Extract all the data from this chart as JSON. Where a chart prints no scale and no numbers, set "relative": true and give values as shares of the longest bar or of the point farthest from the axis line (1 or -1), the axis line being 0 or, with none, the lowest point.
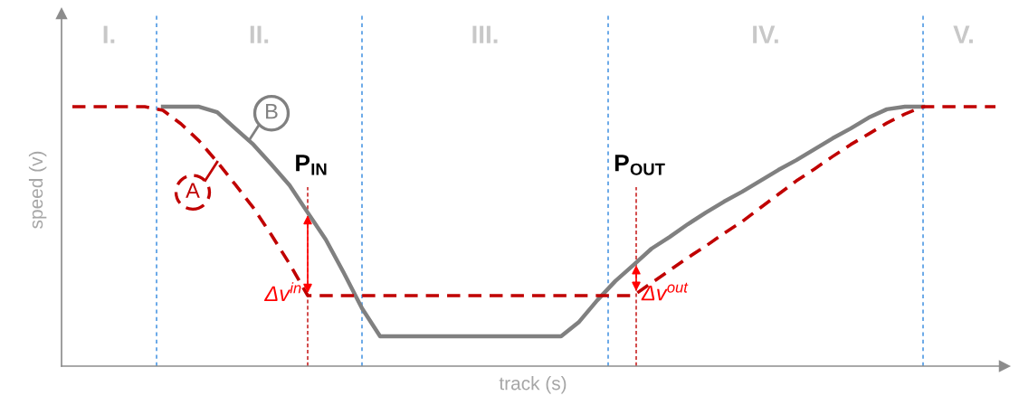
{
  "chart_data": {
    "type": "line",
    "relative": true,
    "xlabel": "track (s)",
    "ylabel": "speed (v)",
    "categories": [
      null,
      null,
      null,
      null,
      null,
      null,
      null,
      null,
      null,
      null,
      null,
      null,
      null,
      null,
      null,
      null,
      null,
      null,
      null,
      null,
      null,
      null,
      null,
      null,
      null,
      null,
      null,
      null,
      null,
      null,
      null,
      null,
      null,
      null,
      null,
      null,
      null,
      null,
      null,
      null,
      null,
      null,
      null,
      null,
      null,
      null,
      null,
      null,
      null,
      null,
      null,
      null
    ],
    "series": [
      {
        "name": "A",
        "color": "#c00000",
        "line_style": "dashed",
        "values": [
          1,
          1,
          1,
          1,
          1,
          0.986,
          0.934,
          0.868,
          0.787,
          0.7,
          0.61,
          0.505,
          0.394,
          0.272,
          0.272,
          0.272,
          0.272,
          0.272,
          0.272,
          0.272,
          0.272,
          0.272,
          0.272,
          0.272,
          0.272,
          0.272,
          0.272,
          0.272,
          0.272,
          0.272,
          0.272,
          0.272,
          0.321,
          0.369,
          0.418,
          0.463,
          0.512,
          0.557,
          0.61,
          0.662,
          0.714,
          0.76,
          0.808,
          0.854,
          0.895,
          0.937,
          0.972,
          1,
          1,
          1,
          1,
          1
        ]
      },
      {
        "name": "B",
        "color": "#808080",
        "line_style": "solid",
        "values": [
          null,
          null,
          null,
          null,
          null,
          1,
          1,
          1,
          0.979,
          0.916,
          0.854,
          0.777,
          0.697,
          0.592,
          0.488,
          0.359,
          0.223,
          0.115,
          0.115,
          0.115,
          0.115,
          0.115,
          0.115,
          0.115,
          0.115,
          0.115,
          0.115,
          0.115,
          0.171,
          0.254,
          0.328,
          0.39,
          0.453,
          0.498,
          0.547,
          0.592,
          0.634,
          0.672,
          0.714,
          0.756,
          0.794,
          0.836,
          0.878,
          0.916,
          0.958,
          0.99,
          1,
          1,
          null,
          null,
          null,
          null
        ]
      }
    ],
    "annotations": [
      "I.",
      "II.",
      "III.",
      "IV.",
      "V.",
      "P$_{IN}$",
      "P$_{OUT}$",
      "Δv$^{in}$",
      "Δv$^{out}$"
    ],
    "marker": "none"
  }
}
